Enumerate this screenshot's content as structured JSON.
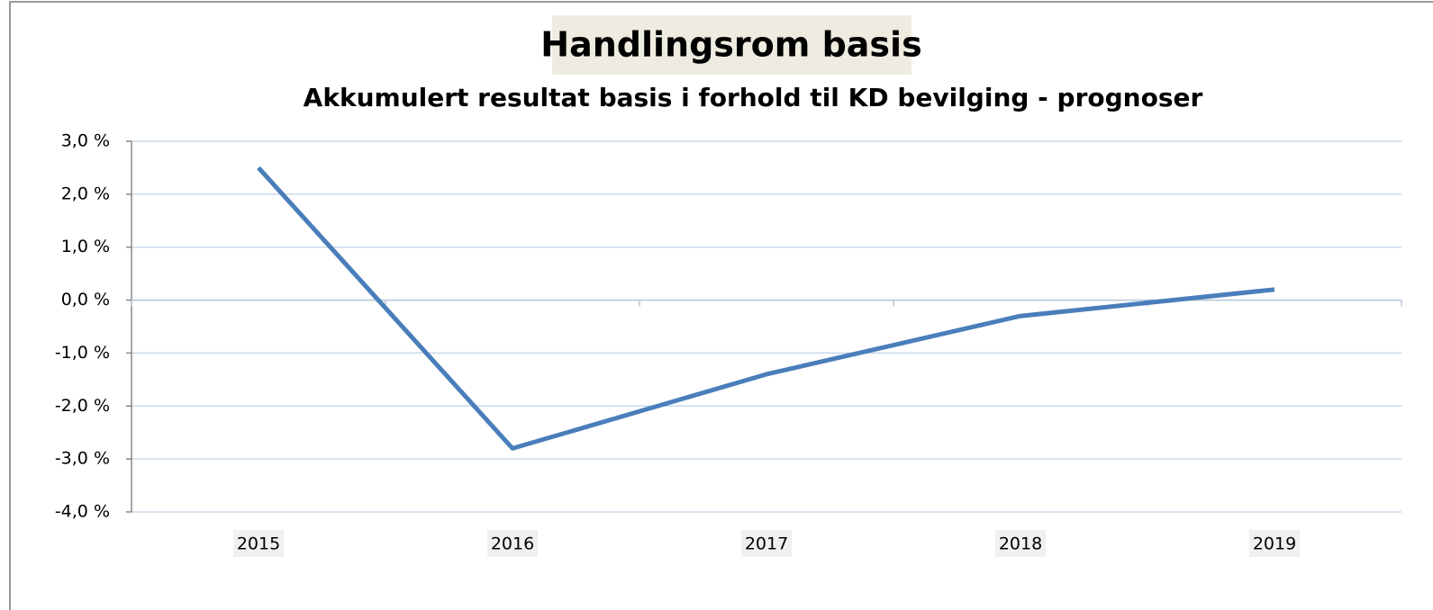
{
  "chart_data": {
    "type": "line",
    "title": "Handlingsrom basis",
    "subtitle": "Akkumulert resultat basis i forhold til KD bevilging - prognoser",
    "categories": [
      "2015",
      "2016",
      "2017",
      "2018",
      "2019"
    ],
    "values": [
      2.5,
      -2.8,
      -1.4,
      -0.3,
      0.2
    ],
    "color": "#4a7ebb",
    "ylim": [
      -4,
      3
    ],
    "yticks": [
      {
        "value": -4,
        "label": "-4,0 %"
      },
      {
        "value": -3,
        "label": "-3,0 %"
      },
      {
        "value": -2,
        "label": "-2,0 %"
      },
      {
        "value": -1,
        "label": "-1,0 %"
      },
      {
        "value": 0,
        "label": "0,0 %"
      },
      {
        "value": 1,
        "label": "1,0 %"
      },
      {
        "value": 2,
        "label": "2,0 %"
      },
      {
        "value": 3,
        "label": "3,0 %"
      }
    ],
    "grid": true
  }
}
